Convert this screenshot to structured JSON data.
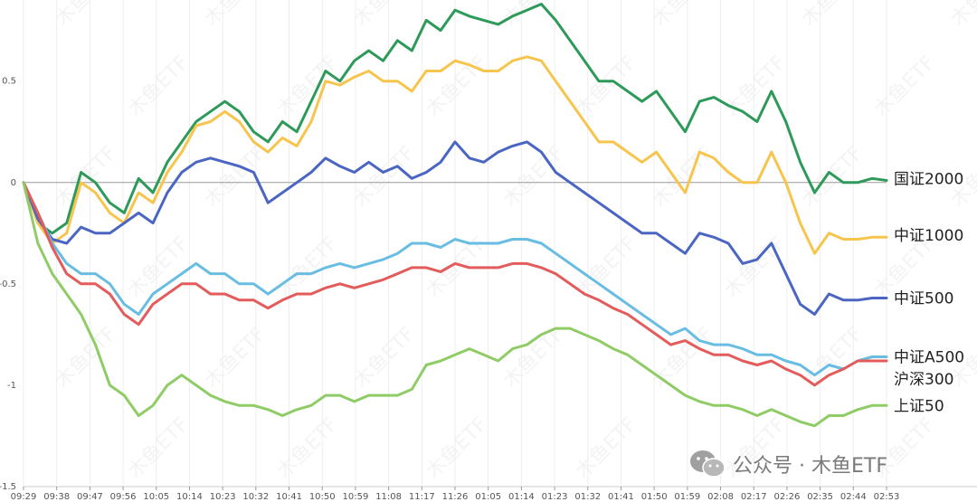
{
  "chart_data": {
    "type": "line",
    "title": "",
    "xlabel": "",
    "ylabel": "",
    "ylim": [
      -1.5,
      0.9
    ],
    "yticks": [
      0.5,
      0,
      -0.5,
      -1,
      -1.5
    ],
    "ytick_labels": [
      "0.5",
      "0",
      "-0.5",
      "-1",
      "-1.5"
    ],
    "xtick_labels": [
      "09:29",
      "09:38",
      "09:47",
      "09:56",
      "10:05",
      "10:14",
      "10:23",
      "10:32",
      "10:41",
      "10:50",
      "10:59",
      "11:08",
      "11:17",
      "11:26",
      "01:05",
      "01:14",
      "01:23",
      "01:32",
      "01:41",
      "01:50",
      "01:59",
      "02:08",
      "02:17",
      "02:26",
      "02:35",
      "02:44",
      "02:53"
    ],
    "legend": "right-end labels",
    "series": [
      {
        "name": "国证2000",
        "color": "#2e9a5a",
        "label_y": 0.02,
        "values": [
          0,
          -0.2,
          -0.25,
          -0.2,
          0.05,
          0,
          -0.1,
          -0.15,
          0.02,
          -0.05,
          0.1,
          0.2,
          0.3,
          0.35,
          0.4,
          0.35,
          0.25,
          0.2,
          0.3,
          0.25,
          0.4,
          0.55,
          0.5,
          0.6,
          0.65,
          0.6,
          0.7,
          0.65,
          0.8,
          0.75,
          0.85,
          0.82,
          0.8,
          0.78,
          0.82,
          0.85,
          0.88,
          0.8,
          0.7,
          0.6,
          0.5,
          0.5,
          0.45,
          0.4,
          0.45,
          0.35,
          0.25,
          0.4,
          0.42,
          0.38,
          0.35,
          0.3,
          0.45,
          0.3,
          0.1,
          -0.05,
          0.05,
          0,
          0,
          0.02,
          0.01
        ]
      },
      {
        "name": "中证1000",
        "color": "#f7c54d",
        "label_y": -0.26,
        "values": [
          0,
          -0.2,
          -0.3,
          -0.25,
          0,
          -0.05,
          -0.15,
          -0.2,
          -0.05,
          -0.1,
          0.05,
          0.15,
          0.28,
          0.3,
          0.35,
          0.3,
          0.2,
          0.15,
          0.22,
          0.18,
          0.3,
          0.5,
          0.48,
          0.52,
          0.55,
          0.5,
          0.5,
          0.45,
          0.55,
          0.55,
          0.6,
          0.58,
          0.55,
          0.55,
          0.6,
          0.62,
          0.6,
          0.5,
          0.4,
          0.3,
          0.2,
          0.2,
          0.15,
          0.1,
          0.15,
          0.05,
          -0.05,
          0.15,
          0.12,
          0.05,
          0,
          0,
          0.15,
          0,
          -0.2,
          -0.35,
          -0.25,
          -0.28,
          -0.28,
          -0.27,
          -0.27
        ]
      },
      {
        "name": "中证500",
        "color": "#4a66c2",
        "label_y": -0.57,
        "values": [
          0,
          -0.18,
          -0.28,
          -0.3,
          -0.22,
          -0.25,
          -0.25,
          -0.2,
          -0.15,
          -0.2,
          -0.05,
          0.05,
          0.1,
          0.12,
          0.1,
          0.08,
          0.05,
          -0.1,
          -0.05,
          0,
          0.05,
          0.12,
          0.08,
          0.05,
          0.1,
          0.05,
          0.08,
          0.02,
          0.05,
          0.1,
          0.2,
          0.12,
          0.1,
          0.15,
          0.18,
          0.2,
          0.15,
          0.05,
          0,
          -0.05,
          -0.1,
          -0.15,
          -0.2,
          -0.25,
          -0.25,
          -0.3,
          -0.35,
          -0.25,
          -0.27,
          -0.3,
          -0.4,
          -0.38,
          -0.3,
          -0.45,
          -0.6,
          -0.65,
          -0.55,
          -0.58,
          -0.58,
          -0.57,
          -0.57
        ]
      },
      {
        "name": "中证A500",
        "color": "#69bde3",
        "label_y": -0.86,
        "values": [
          0,
          -0.15,
          -0.3,
          -0.4,
          -0.45,
          -0.45,
          -0.5,
          -0.6,
          -0.65,
          -0.55,
          -0.5,
          -0.45,
          -0.4,
          -0.45,
          -0.45,
          -0.5,
          -0.5,
          -0.55,
          -0.5,
          -0.45,
          -0.45,
          -0.42,
          -0.4,
          -0.42,
          -0.4,
          -0.38,
          -0.35,
          -0.3,
          -0.3,
          -0.32,
          -0.28,
          -0.3,
          -0.3,
          -0.3,
          -0.28,
          -0.28,
          -0.3,
          -0.35,
          -0.4,
          -0.45,
          -0.5,
          -0.55,
          -0.6,
          -0.65,
          -0.7,
          -0.75,
          -0.72,
          -0.78,
          -0.8,
          -0.8,
          -0.82,
          -0.85,
          -0.85,
          -0.88,
          -0.9,
          -0.95,
          -0.9,
          -0.92,
          -0.88,
          -0.86,
          -0.86
        ]
      },
      {
        "name": "沪深300",
        "color": "#e35b5b",
        "label_y": -0.97,
        "values": [
          0,
          -0.15,
          -0.32,
          -0.45,
          -0.5,
          -0.5,
          -0.55,
          -0.65,
          -0.7,
          -0.6,
          -0.55,
          -0.5,
          -0.5,
          -0.55,
          -0.55,
          -0.58,
          -0.58,
          -0.62,
          -0.58,
          -0.55,
          -0.55,
          -0.52,
          -0.5,
          -0.52,
          -0.5,
          -0.48,
          -0.45,
          -0.42,
          -0.42,
          -0.44,
          -0.4,
          -0.42,
          -0.42,
          -0.42,
          -0.4,
          -0.4,
          -0.42,
          -0.45,
          -0.5,
          -0.55,
          -0.58,
          -0.62,
          -0.65,
          -0.7,
          -0.75,
          -0.8,
          -0.78,
          -0.82,
          -0.85,
          -0.85,
          -0.88,
          -0.9,
          -0.88,
          -0.92,
          -0.95,
          -1,
          -0.95,
          -0.92,
          -0.88,
          -0.88,
          -0.88
        ]
      },
      {
        "name": "上证50",
        "color": "#8fcc66",
        "label_y": -1.1,
        "values": [
          0,
          -0.3,
          -0.45,
          -0.55,
          -0.65,
          -0.8,
          -1,
          -1.05,
          -1.15,
          -1.1,
          -1,
          -0.95,
          -1,
          -1.05,
          -1.08,
          -1.1,
          -1.1,
          -1.12,
          -1.15,
          -1.12,
          -1.1,
          -1.05,
          -1.05,
          -1.08,
          -1.05,
          -1.05,
          -1.05,
          -1.02,
          -0.9,
          -0.88,
          -0.85,
          -0.82,
          -0.85,
          -0.88,
          -0.82,
          -0.8,
          -0.75,
          -0.72,
          -0.72,
          -0.75,
          -0.78,
          -0.82,
          -0.85,
          -0.9,
          -0.95,
          -1,
          -1.05,
          -1.08,
          -1.1,
          -1.1,
          -1.12,
          -1.15,
          -1.12,
          -1.15,
          -1.18,
          -1.2,
          -1.15,
          -1.15,
          -1.12,
          -1.1,
          -1.1
        ]
      }
    ]
  },
  "watermark": {
    "text": "木鱼ETF"
  },
  "brand": {
    "prefix": "公众号 · ",
    "name": "木鱼ETF",
    "icon": "wechat-icon"
  }
}
